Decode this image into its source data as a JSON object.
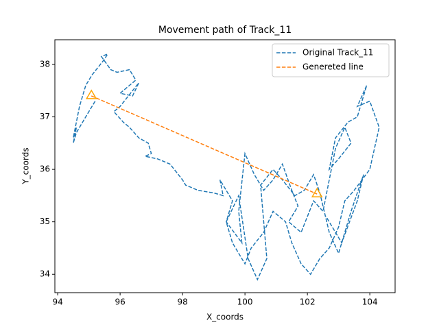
{
  "chart_data": {
    "type": "line",
    "title": "Movement path of Track_11",
    "x_label": "X_coords",
    "y_label": "Y_coords",
    "xlim": [
      93.91,
      104.81
    ],
    "ylim": [
      33.65,
      38.47
    ],
    "xticks": [
      94,
      96,
      98,
      100,
      102,
      104
    ],
    "yticks": [
      34,
      35,
      36,
      37,
      38
    ],
    "legend": "upper right",
    "series": [
      {
        "name": "Original Track_11",
        "color": "#1f77b4",
        "x": [
          95.2,
          94.9,
          94.6,
          94.5,
          94.6,
          94.5,
          94.7,
          94.9,
          95.1,
          95.5,
          95.6,
          95.4,
          95.7,
          95.9,
          96.3,
          96.5,
          96.2,
          96.0,
          96.4,
          96.6,
          96.0,
          95.8,
          96.1,
          96.3,
          96.6,
          96.9,
          97.0,
          96.8,
          97.2,
          97.6,
          98.0,
          98.1,
          98.5,
          99.0,
          99.3,
          99.2,
          99.6,
          99.4,
          99.9,
          99.8,
          100.0,
          100.3,
          100.6,
          100.9,
          101.2,
          101.5,
          101.7,
          101.4,
          101.8,
          102.2,
          102.5,
          102.9,
          103.2,
          103.4,
          103.0,
          102.7,
          102.9,
          103.3,
          103.6,
          103.9,
          103.6,
          104.0,
          104.3,
          104.0,
          103.5,
          103.2,
          103.0,
          102.7,
          102.4,
          102.1,
          101.8,
          101.5,
          101.3,
          100.9,
          100.6,
          100.2,
          100.0,
          99.6,
          99.4,
          99.8,
          100.1,
          100.4,
          100.7,
          100.5,
          100.9,
          101.2,
          101.6,
          101.9,
          102.2,
          102.4,
          102.7,
          103.0,
          103.4,
          103.8,
          103.6,
          103.1,
          102.6
        ],
        "values": [
          37.3,
          37.0,
          36.7,
          36.5,
          36.8,
          36.6,
          37.2,
          37.6,
          37.8,
          38.1,
          38.2,
          38.15,
          37.9,
          37.85,
          37.9,
          37.7,
          37.55,
          37.45,
          37.4,
          37.65,
          37.2,
          37.1,
          36.9,
          36.8,
          36.6,
          36.5,
          36.3,
          36.25,
          36.2,
          36.1,
          35.8,
          35.7,
          35.6,
          35.55,
          35.5,
          35.8,
          35.4,
          35.0,
          34.6,
          35.2,
          36.3,
          35.9,
          35.6,
          35.8,
          36.1,
          35.6,
          35.3,
          35.0,
          34.8,
          35.4,
          35.2,
          36.4,
          36.8,
          36.5,
          36.2,
          36.0,
          36.6,
          36.9,
          37.0,
          37.6,
          37.2,
          37.3,
          36.8,
          36.0,
          35.6,
          35.4,
          34.9,
          34.5,
          34.3,
          34.0,
          34.2,
          34.6,
          35.0,
          35.2,
          34.8,
          34.5,
          34.2,
          34.6,
          35.0,
          35.5,
          34.3,
          33.9,
          34.3,
          35.7,
          36.0,
          35.8,
          35.5,
          35.6,
          35.9,
          35.55,
          34.8,
          34.4,
          35.2,
          35.9,
          35.4,
          34.6,
          35.1
        ]
      },
      {
        "name": "Genereted line",
        "color": "#ff7f0e",
        "marker": "triangle",
        "marker_color": "#ffa500",
        "x": [
          95.08,
          102.31
        ],
        "values": [
          37.4,
          35.53
        ]
      }
    ]
  }
}
